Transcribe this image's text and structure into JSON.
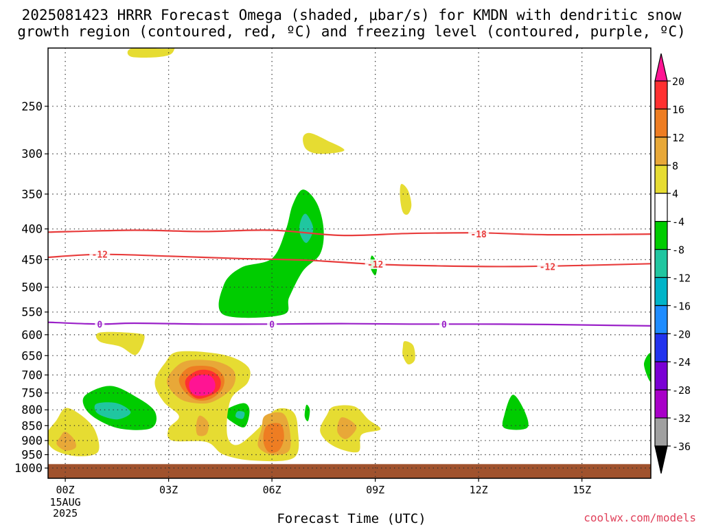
{
  "title_line1": "2025081423 HRRR Forecast Omega (shaded, μbar/s) for KMDN with dendritic snow",
  "title_line2": "growth region (contoured, red, ºC) and freezing level (contoured, purple, ºC)",
  "credit": "coolwx.com/models",
  "chart_data": {
    "type": "heatmap",
    "xlabel": "Forecast Time (UTC)",
    "ylabel": "",
    "x_unit": "forecast hour",
    "xlim": [
      -0.5,
      17.0
    ],
    "x_ticks": [
      {
        "x": 0,
        "label": "00Z"
      },
      {
        "x": 3,
        "label": "03Z"
      },
      {
        "x": 6,
        "label": "06Z"
      },
      {
        "x": 9,
        "label": "09Z"
      },
      {
        "x": 12,
        "label": "12Z"
      },
      {
        "x": 15,
        "label": "15Z"
      }
    ],
    "x_date_label": [
      "15AUG",
      "2025"
    ],
    "y_unit": "hPa",
    "ylim": [
      1040,
      200
    ],
    "y_ticks": [
      250,
      300,
      350,
      400,
      450,
      500,
      550,
      600,
      650,
      700,
      750,
      800,
      850,
      900,
      950,
      1000
    ],
    "ground_level_hPa": 985,
    "grid": true,
    "colorbar": {
      "levels": [
        20,
        16,
        12,
        8,
        4,
        -4,
        -8,
        -12,
        -16,
        -20,
        -24,
        -28,
        -32,
        -36
      ],
      "colors": [
        "#ff1493",
        "#ff3030",
        "#ee7d22",
        "#e8a838",
        "#e6dc32",
        "#ffffff",
        "#00cc00",
        "#20c6a0",
        "#00b4c8",
        "#1e8cff",
        "#2233ee",
        "#7a00d4",
        "#a800c8",
        "#a0a0a0",
        "#000000"
      ]
    },
    "contours": [
      {
        "name": "-18",
        "color": "#e83c3c",
        "points": [
          [
            -0.5,
            405
          ],
          [
            2,
            402
          ],
          [
            4,
            404
          ],
          [
            6,
            402
          ],
          [
            8,
            410
          ],
          [
            10,
            407
          ],
          [
            12,
            406
          ],
          [
            14,
            409
          ],
          [
            17,
            408
          ]
        ],
        "labels": [
          [
            12,
            408
          ]
        ]
      },
      {
        "name": "-12",
        "color": "#e83c3c",
        "points": [
          [
            -0.5,
            446
          ],
          [
            1,
            441
          ],
          [
            3,
            444
          ],
          [
            5,
            448
          ],
          [
            7,
            451
          ],
          [
            9,
            458
          ],
          [
            11,
            461
          ],
          [
            13,
            462
          ],
          [
            15,
            460
          ],
          [
            17,
            457
          ]
        ],
        "labels": [
          [
            1,
            441
          ],
          [
            9,
            458
          ],
          [
            14,
            462
          ]
        ]
      },
      {
        "name": "0",
        "color": "#9a20c8",
        "points": [
          [
            -0.5,
            572
          ],
          [
            1,
            576
          ],
          [
            2,
            574
          ],
          [
            4,
            576
          ],
          [
            6,
            576
          ],
          [
            8,
            575
          ],
          [
            10,
            576
          ],
          [
            12,
            576
          ],
          [
            14,
            577
          ],
          [
            17,
            580
          ]
        ],
        "labels": [
          [
            1,
            576
          ],
          [
            6,
            576
          ],
          [
            11,
            576
          ]
        ]
      }
    ],
    "shaded_regions": [
      {
        "level": 4,
        "points": [
          [
            1.95,
            200
          ],
          [
            3.15,
            200
          ],
          [
            3.2,
            190
          ],
          [
            3.05,
            205
          ],
          [
            1.95,
            207
          ]
        ]
      },
      {
        "level": 4,
        "points": [
          [
            7.1,
            277
          ],
          [
            7.6,
            285
          ],
          [
            8.1,
            296
          ],
          [
            7.4,
            300
          ],
          [
            7.0,
            295
          ],
          [
            6.9,
            282
          ]
        ]
      },
      {
        "level": 4,
        "points": [
          [
            9.75,
            337
          ],
          [
            9.95,
            345
          ],
          [
            10.05,
            365
          ],
          [
            9.95,
            378
          ],
          [
            9.8,
            375
          ],
          [
            9.72,
            355
          ]
        ]
      },
      {
        "level": 4,
        "points": [
          [
            1.0,
            595
          ],
          [
            2.1,
            597
          ],
          [
            2.3,
            608
          ],
          [
            2.05,
            648
          ],
          [
            1.6,
            628
          ],
          [
            1.0,
            616
          ]
        ]
      },
      {
        "level": 4,
        "points": [
          [
            9.85,
            615
          ],
          [
            10.1,
            625
          ],
          [
            10.15,
            660
          ],
          [
            9.95,
            672
          ],
          [
            9.8,
            650
          ],
          [
            9.8,
            630
          ]
        ]
      },
      {
        "level": -4,
        "points": [
          [
            6.9,
            344
          ],
          [
            7.3,
            362
          ],
          [
            7.5,
            400
          ],
          [
            7.4,
            440
          ],
          [
            6.9,
            470
          ],
          [
            6.5,
            520
          ],
          [
            6.3,
            556
          ],
          [
            4.6,
            556
          ],
          [
            4.6,
            496
          ],
          [
            5.1,
            464
          ],
          [
            6.0,
            448
          ],
          [
            6.4,
            402
          ],
          [
            6.6,
            365
          ]
        ]
      },
      {
        "level": -8,
        "points": [
          [
            7.0,
            378
          ],
          [
            7.2,
            400
          ],
          [
            7.0,
            422
          ],
          [
            6.8,
            405
          ],
          [
            6.85,
            385
          ]
        ]
      },
      {
        "level": -4,
        "points": [
          [
            8.9,
            443
          ],
          [
            9.05,
            458
          ],
          [
            9.0,
            478
          ],
          [
            8.85,
            462
          ]
        ]
      },
      {
        "level": -4,
        "points": [
          [
            17.0,
            645
          ],
          [
            16.8,
            672
          ],
          [
            17.0,
            718
          ]
        ]
      },
      {
        "level": -4,
        "points": [
          [
            0.6,
            755
          ],
          [
            1.3,
            730
          ],
          [
            2.0,
            758
          ],
          [
            2.6,
            805
          ],
          [
            2.5,
            858
          ],
          [
            1.6,
            860
          ],
          [
            0.9,
            828
          ],
          [
            0.55,
            790
          ]
        ]
      },
      {
        "level": -8,
        "points": [
          [
            0.9,
            782
          ],
          [
            1.5,
            780
          ],
          [
            1.9,
            808
          ],
          [
            1.5,
            830
          ],
          [
            0.95,
            812
          ]
        ]
      },
      {
        "level": -4,
        "points": [
          [
            4.75,
            795
          ],
          [
            5.2,
            780
          ],
          [
            5.35,
            805
          ],
          [
            5.2,
            855
          ],
          [
            4.8,
            835
          ],
          [
            4.65,
            815
          ]
        ]
      },
      {
        "level": -8,
        "points": [
          [
            5.0,
            805
          ],
          [
            5.2,
            808
          ],
          [
            5.15,
            828
          ],
          [
            4.95,
            822
          ]
        ]
      },
      {
        "level": -4,
        "points": [
          [
            7.0,
            785
          ],
          [
            7.1,
            800
          ],
          [
            7.05,
            835
          ],
          [
            6.95,
            820
          ]
        ]
      },
      {
        "level": -4,
        "points": [
          [
            13.0,
            755
          ],
          [
            13.35,
            808
          ],
          [
            13.4,
            858
          ],
          [
            12.75,
            858
          ],
          [
            12.75,
            815
          ]
        ]
      },
      {
        "level": 4,
        "points": [
          [
            0.0,
            795
          ],
          [
            0.4,
            812
          ],
          [
            0.85,
            862
          ],
          [
            0.95,
            940
          ],
          [
            0.3,
            955
          ],
          [
            -0.35,
            930
          ],
          [
            -0.55,
            882
          ],
          [
            -0.25,
            832
          ]
        ]
      },
      {
        "level": 8,
        "points": [
          [
            0.0,
            870
          ],
          [
            0.25,
            895
          ],
          [
            0.3,
            925
          ],
          [
            0.0,
            935
          ],
          [
            -0.25,
            912
          ],
          [
            -0.15,
            888
          ]
        ]
      },
      {
        "level": 4,
        "points": [
          [
            3.3,
            640
          ],
          [
            4.6,
            648
          ],
          [
            5.3,
            678
          ],
          [
            5.3,
            720
          ],
          [
            4.8,
            770
          ],
          [
            4.7,
            880
          ],
          [
            5.0,
            915
          ],
          [
            5.6,
            860
          ],
          [
            6.1,
            800
          ],
          [
            6.6,
            805
          ],
          [
            6.75,
            860
          ],
          [
            6.65,
            960
          ],
          [
            5.5,
            972
          ],
          [
            4.6,
            950
          ],
          [
            4.1,
            905
          ],
          [
            3.1,
            900
          ],
          [
            3.0,
            860
          ],
          [
            3.3,
            820
          ],
          [
            2.85,
            775
          ],
          [
            2.6,
            720
          ],
          [
            2.9,
            668
          ]
        ]
      },
      {
        "level": 8,
        "points": [
          [
            3.6,
            662
          ],
          [
            4.4,
            665
          ],
          [
            4.9,
            690
          ],
          [
            4.85,
            735
          ],
          [
            4.3,
            775
          ],
          [
            3.8,
            780
          ],
          [
            3.3,
            765
          ],
          [
            2.95,
            720
          ],
          [
            3.2,
            680
          ]
        ]
      },
      {
        "level": 12,
        "points": [
          [
            3.8,
            676
          ],
          [
            4.3,
            680
          ],
          [
            4.6,
            705
          ],
          [
            4.55,
            740
          ],
          [
            4.2,
            768
          ],
          [
            3.8,
            770
          ],
          [
            3.45,
            745
          ],
          [
            3.3,
            712
          ],
          [
            3.5,
            685
          ]
        ]
      },
      {
        "level": 16,
        "points": [
          [
            3.85,
            688
          ],
          [
            4.25,
            690
          ],
          [
            4.5,
            712
          ],
          [
            4.45,
            742
          ],
          [
            4.1,
            762
          ],
          [
            3.8,
            765
          ],
          [
            3.55,
            742
          ],
          [
            3.5,
            712
          ]
        ]
      },
      {
        "level": 20,
        "points": [
          [
            3.9,
            700
          ],
          [
            4.2,
            702
          ],
          [
            4.35,
            722
          ],
          [
            4.3,
            745
          ],
          [
            4.05,
            757
          ],
          [
            3.75,
            755
          ],
          [
            3.6,
            735
          ],
          [
            3.65,
            712
          ]
        ]
      },
      {
        "level": 8,
        "points": [
          [
            3.9,
            818
          ],
          [
            4.15,
            840
          ],
          [
            4.1,
            878
          ],
          [
            3.85,
            882
          ],
          [
            3.8,
            850
          ]
        ]
      },
      {
        "level": 8,
        "points": [
          [
            5.8,
            818
          ],
          [
            6.3,
            810
          ],
          [
            6.5,
            855
          ],
          [
            6.5,
            935
          ],
          [
            6.0,
            950
          ],
          [
            5.6,
            920
          ],
          [
            5.7,
            860
          ]
        ]
      },
      {
        "level": 12,
        "points": [
          [
            5.85,
            850
          ],
          [
            6.25,
            845
          ],
          [
            6.35,
            890
          ],
          [
            6.2,
            935
          ],
          [
            5.9,
            940
          ],
          [
            5.75,
            900
          ]
        ]
      },
      {
        "level": 4,
        "points": [
          [
            7.8,
            790
          ],
          [
            8.4,
            790
          ],
          [
            8.8,
            830
          ],
          [
            9.15,
            862
          ],
          [
            8.6,
            880
          ],
          [
            8.5,
            940
          ],
          [
            7.8,
            920
          ],
          [
            7.4,
            870
          ],
          [
            7.6,
            815
          ]
        ]
      },
      {
        "level": 8,
        "points": [
          [
            8.0,
            825
          ],
          [
            8.3,
            835
          ],
          [
            8.45,
            860
          ],
          [
            8.15,
            895
          ],
          [
            7.9,
            870
          ]
        ]
      }
    ]
  }
}
